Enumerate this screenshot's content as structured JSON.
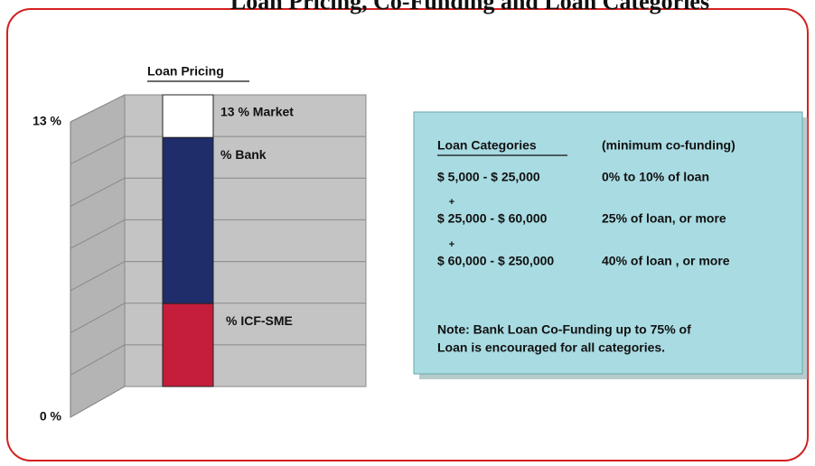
{
  "title": "Loan Pricing, Co-Funding and Loan Categories",
  "chart_data": {
    "type": "stacked_bar",
    "title": "Loan Pricing",
    "series": [
      {
        "name": "% ICF-SME",
        "color": "#c41e3a",
        "values": [
          3.7
        ]
      },
      {
        "name": "% Bank",
        "color": "#1f2d6b",
        "values": [
          7.4
        ]
      },
      {
        "name": "13 % Market",
        "color": "#ffffff",
        "values": [
          1.9
        ]
      }
    ],
    "ylim": [
      0,
      13
    ],
    "yticks": [
      {
        "value": 0,
        "label": "0 %"
      },
      {
        "value": 13,
        "label": "13 %"
      }
    ],
    "grid": true
  },
  "info_box": {
    "header": [
      "Loan Categories",
      "(minimum co-funding)"
    ],
    "rows": [
      [
        "$ 5,000 - $ 25,000",
        "0% to 10% of loan"
      ],
      [
        "$ 25,000 - $ 60,000",
        "25% of loan, or more"
      ],
      [
        "$ 60,000 - $ 250,000",
        "40% of loan , or more"
      ]
    ],
    "separator": "+",
    "note": [
      "Note: Bank Loan Co-Funding  up to 75% of",
      "Loan is encouraged for all categories."
    ]
  }
}
